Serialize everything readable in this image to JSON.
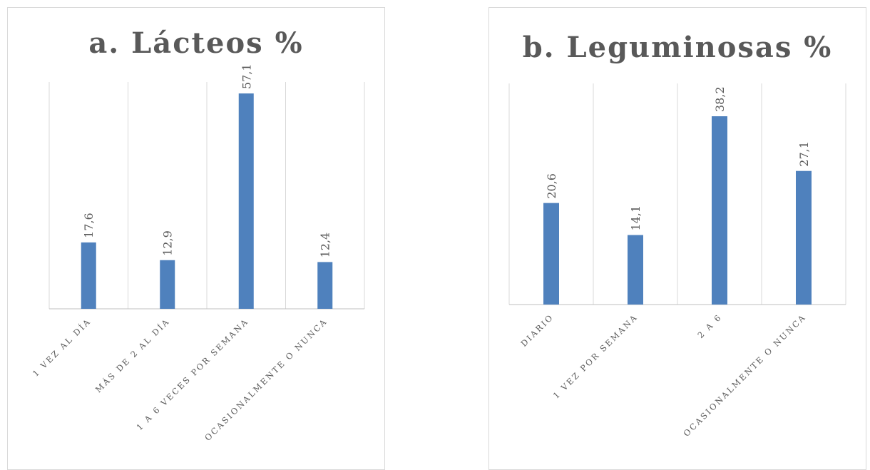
{
  "colors": {
    "bar": "#4f81bd",
    "grid": "#d9d9d9",
    "axis": "#bfbfbf",
    "text": "#595959"
  },
  "chart_data": [
    {
      "type": "bar",
      "title": "a. Lácteos %",
      "categories": [
        "1 VEZ AL DÍA",
        "MÁS DE 2 AL DÍA",
        "1 A 6 VECES POR SEMANA",
        "OCASIONALMENTE O NUNCA"
      ],
      "values": [
        17.6,
        12.9,
        57.1,
        12.4
      ],
      "value_labels": [
        "17,6",
        "12,9",
        "57,1",
        "12,4"
      ],
      "ylim": [
        0,
        57.1
      ],
      "grid": "vertical",
      "legend": "none"
    },
    {
      "type": "bar",
      "title": "b. Leguminosas %",
      "categories": [
        "DIARIO",
        "1 VEZ POR SEMANA",
        "2 A 6",
        "OCASIONALMENTE O NUNCA"
      ],
      "values": [
        20.6,
        14.1,
        38.2,
        27.1
      ],
      "value_labels": [
        "20,6",
        "14,1",
        "38,2",
        "27,1"
      ],
      "ylim": [
        0,
        38.2
      ],
      "grid": "vertical",
      "legend": "none"
    }
  ]
}
